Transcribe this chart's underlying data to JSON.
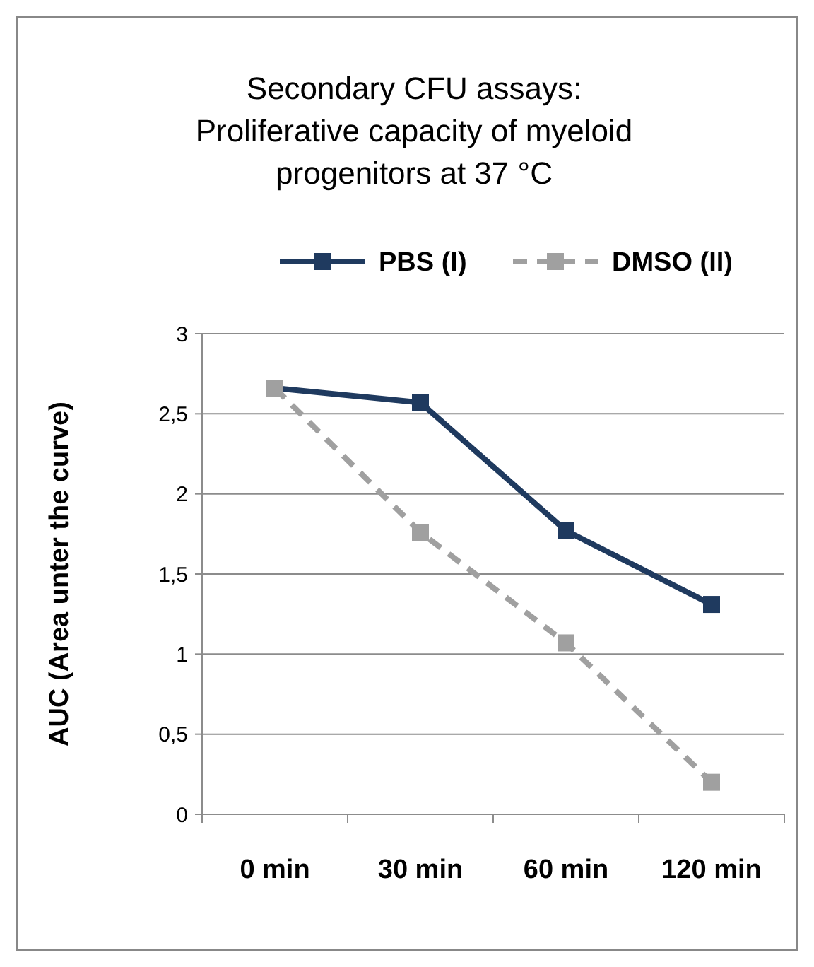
{
  "chart_data": {
    "type": "line",
    "title": "Secondary CFU assays: Proliferative capacity of myeloid progenitors at 37 °C",
    "ylabel": "AUC (Area unter the curve)",
    "categories": [
      "0 min",
      "30 min",
      "60 min",
      "120 min"
    ],
    "series": [
      {
        "name": "PBS (I)",
        "color": "#1f3a5f",
        "values": [
          2.66,
          2.57,
          1.77,
          1.31
        ],
        "line_style": "solid"
      },
      {
        "name": "DMSO (II)",
        "color": "#a0a0a0",
        "values": [
          2.66,
          1.76,
          1.07,
          0.2
        ],
        "line_style": "dashed"
      }
    ],
    "ylim": [
      0,
      3
    ],
    "yticks": [
      0,
      {
        "value": 0.5,
        "label": "0,5"
      },
      1,
      {
        "value": 1.5,
        "label": "1,5"
      },
      2,
      {
        "value": 2.5,
        "label": "2,5"
      },
      3
    ],
    "grid": "y",
    "legend": "top",
    "marker": "square"
  }
}
